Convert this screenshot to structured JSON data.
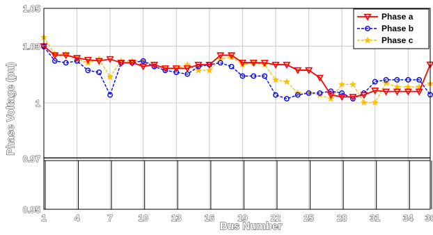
{
  "chart_data": {
    "type": "line",
    "xlabel": "Bus Number",
    "ylabel": "Phase Voltage (pu)",
    "xlim": [
      1,
      36
    ],
    "y_ticks": [
      0.95,
      0.97,
      1,
      1.03,
      1.05
    ],
    "y_tick_labels": [
      "0.95",
      "0.97",
      "1",
      "1.03",
      "1.05"
    ],
    "x_ticks": [
      1,
      4,
      7,
      10,
      13,
      16,
      19,
      22,
      25,
      28,
      31,
      34,
      36
    ],
    "x_tick_labels": [
      "1",
      "4",
      "7",
      "10",
      "13",
      "16",
      "19",
      "22",
      "25",
      "28",
      "31",
      "34",
      "36"
    ],
    "grid": true,
    "axis_break": "between 0.97 and 1",
    "legend_position": "top-right",
    "x": [
      1,
      2,
      3,
      4,
      5,
      6,
      7,
      8,
      9,
      10,
      11,
      12,
      13,
      14,
      15,
      16,
      17,
      18,
      19,
      20,
      21,
      22,
      23,
      24,
      25,
      26,
      27,
      28,
      29,
      30,
      31,
      32,
      33,
      34,
      35,
      36
    ],
    "series": [
      {
        "name": "Phase a",
        "color": "#ff0000",
        "marker": "triangle-down",
        "line_style": "solid",
        "values": [
          1.03,
          1.0252,
          1.0252,
          1.0238,
          1.0228,
          1.0222,
          1.0232,
          1.0212,
          1.0213,
          1.0193,
          1.0202,
          1.0183,
          1.0183,
          1.0183,
          1.0202,
          1.0202,
          1.0252,
          1.0252,
          1.0213,
          1.0213,
          1.0212,
          1.0202,
          1.0202,
          1.0173,
          1.0173,
          1.0133,
          1.0042,
          1.0032,
          1.0032,
          1.0042,
          0.9968,
          0.9964,
          0.9964,
          0.9964,
          0.9964,
          1.0203
        ]
      },
      {
        "name": "Phase b",
        "color": "#0000ff",
        "marker": "circle",
        "line_style": "dashed",
        "values": [
          1.0297,
          1.0222,
          1.0212,
          1.0222,
          1.0172,
          1.0162,
          1.0042,
          1.0212,
          1.0212,
          1.0222,
          1.0192,
          1.0172,
          1.0162,
          1.0152,
          1.0192,
          1.0202,
          1.0212,
          1.0192,
          1.0142,
          1.0142,
          1.0142,
          1.0042,
          1.0022,
          1.0042,
          1.0052,
          1.0052,
          1.0062,
          1.0052,
          1.0022,
          1.0052,
          1.0112,
          1.0122,
          1.0122,
          1.0122,
          1.0122,
          1.0043
        ]
      },
      {
        "name": "Phase c",
        "color": "#ffbf00",
        "marker": "star",
        "line_style": "dashed",
        "values": [
          1.0347,
          1.0257,
          1.0257,
          1.0232,
          1.0212,
          1.0232,
          1.0137,
          1.0222,
          1.0222,
          1.0222,
          1.0202,
          1.0182,
          1.0182,
          1.0202,
          1.0172,
          1.0172,
          1.0232,
          1.0242,
          1.0202,
          1.0212,
          1.0202,
          1.0122,
          1.0112,
          1.0052,
          1.0052,
          1.0042,
          1.0022,
          0.9992,
          0.9992,
          1.0002,
          1.0002,
          0.9997,
          0.9982,
          0.9982,
          0.9982,
          1.0102
        ]
      }
    ]
  }
}
